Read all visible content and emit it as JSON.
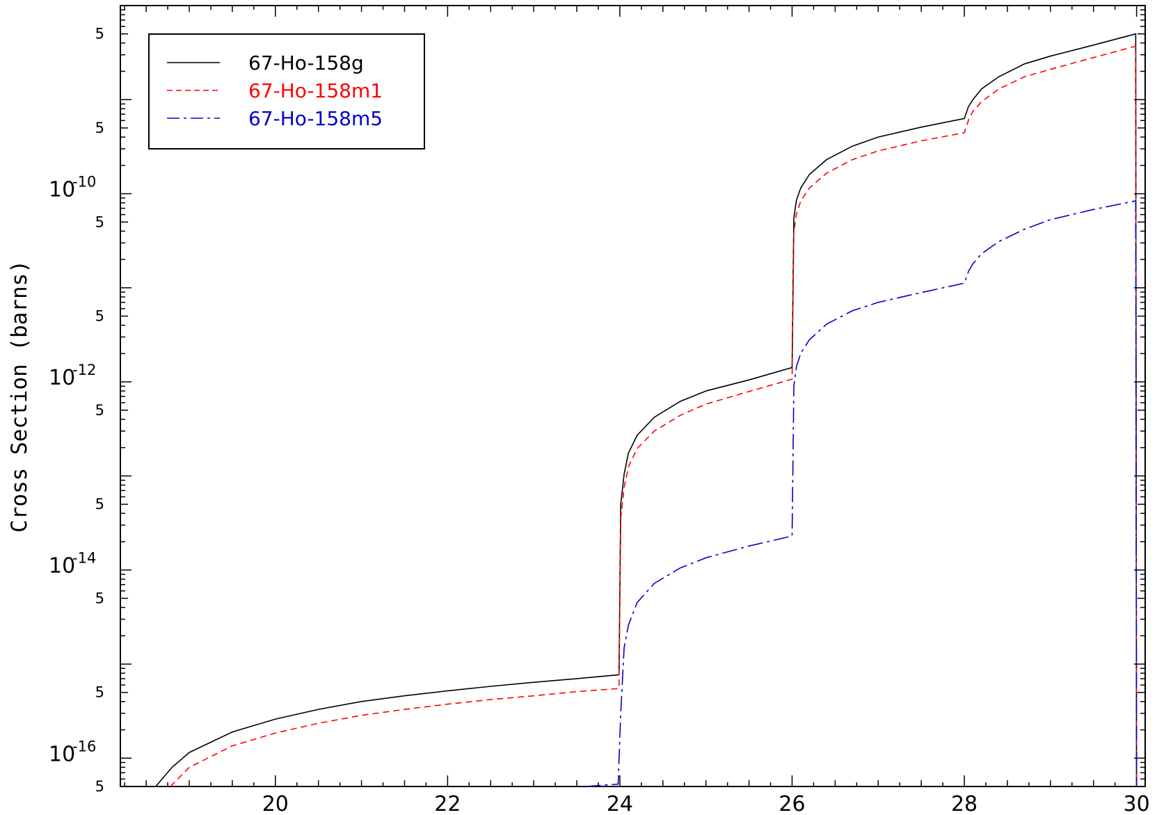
{
  "chart_data": {
    "type": "line",
    "title": "",
    "xlabel": "",
    "ylabel": "Cross Section (barns)",
    "yscale": "log",
    "xlim": [
      18.2,
      30.1
    ],
    "ylim": [
      5e-17,
      1e-08
    ],
    "grid": false,
    "legend_position": "top-left",
    "x_ticks": [
      "20",
      "22",
      "24",
      "26",
      "28",
      "30"
    ],
    "y_decade_labels": [
      {
        "value": 1e-16,
        "base": "10",
        "exponent": "-16"
      },
      {
        "value": 1e-14,
        "base": "10",
        "exponent": "-14"
      },
      {
        "value": 1e-12,
        "base": "10",
        "exponent": "-12"
      },
      {
        "value": 1e-10,
        "base": "10",
        "exponent": "-10"
      }
    ],
    "y_five_label": "5",
    "series": [
      {
        "name": "67-Ho-158g",
        "color": "#000000",
        "style": "solid",
        "points": [
          [
            18.61,
            5e-17
          ],
          [
            18.8,
            8e-17
          ],
          [
            19.0,
            1.15e-16
          ],
          [
            19.5,
            1.9e-16
          ],
          [
            20.0,
            2.6e-16
          ],
          [
            20.5,
            3.3e-16
          ],
          [
            21.0,
            4e-16
          ],
          [
            21.5,
            4.6e-16
          ],
          [
            22.0,
            5.2e-16
          ],
          [
            22.5,
            5.8e-16
          ],
          [
            23.0,
            6.4e-16
          ],
          [
            23.5,
            7e-16
          ],
          [
            23.99,
            7.7e-16
          ],
          [
            24.01,
            5e-14
          ],
          [
            24.05,
            1.05e-13
          ],
          [
            24.1,
            1.75e-13
          ],
          [
            24.2,
            2.7e-13
          ],
          [
            24.4,
            4.2e-13
          ],
          [
            24.7,
            6.2e-13
          ],
          [
            25.0,
            8e-13
          ],
          [
            25.5,
            1.05e-12
          ],
          [
            26.0,
            1.42e-12
          ],
          [
            26.02,
            5.5e-11
          ],
          [
            26.05,
            8.5e-11
          ],
          [
            26.1,
            1.15e-10
          ],
          [
            26.2,
            1.6e-10
          ],
          [
            26.4,
            2.3e-10
          ],
          [
            26.7,
            3.2e-10
          ],
          [
            27.0,
            4e-10
          ],
          [
            27.5,
            5.1e-10
          ],
          [
            28.0,
            6.3e-10
          ],
          [
            28.05,
            8.5e-10
          ],
          [
            28.1,
            1e-09
          ],
          [
            28.2,
            1.3e-09
          ],
          [
            28.4,
            1.75e-09
          ],
          [
            28.7,
            2.4e-09
          ],
          [
            29.0,
            2.9e-09
          ],
          [
            29.5,
            3.8e-09
          ],
          [
            29.99,
            5e-09
          ],
          [
            30.0,
            5e-17
          ]
        ]
      },
      {
        "name": "67-Ho-158m1",
        "color": "#ff0000",
        "style": "dashed",
        "points": [
          [
            18.78,
            5e-17
          ],
          [
            19.0,
            8e-17
          ],
          [
            19.5,
            1.35e-16
          ],
          [
            20.0,
            1.85e-16
          ],
          [
            20.5,
            2.35e-16
          ],
          [
            21.0,
            2.85e-16
          ],
          [
            21.5,
            3.3e-16
          ],
          [
            22.0,
            3.75e-16
          ],
          [
            22.5,
            4.2e-16
          ],
          [
            23.0,
            4.6e-16
          ],
          [
            23.5,
            5.1e-16
          ],
          [
            23.99,
            5.5e-16
          ],
          [
            24.01,
            3.5e-14
          ],
          [
            24.05,
            7.5e-14
          ],
          [
            24.1,
            1.25e-13
          ],
          [
            24.2,
            1.95e-13
          ],
          [
            24.4,
            3e-13
          ],
          [
            24.7,
            4.4e-13
          ],
          [
            25.0,
            5.8e-13
          ],
          [
            25.5,
            7.9e-13
          ],
          [
            26.0,
            1.07e-12
          ],
          [
            26.02,
            3.9e-11
          ],
          [
            26.05,
            6.1e-11
          ],
          [
            26.1,
            8.3e-11
          ],
          [
            26.2,
            1.15e-10
          ],
          [
            26.4,
            1.65e-10
          ],
          [
            26.7,
            2.3e-10
          ],
          [
            27.0,
            2.85e-10
          ],
          [
            27.5,
            3.65e-10
          ],
          [
            28.0,
            4.45e-10
          ],
          [
            28.05,
            6.1e-10
          ],
          [
            28.1,
            7.5e-10
          ],
          [
            28.2,
            9.5e-10
          ],
          [
            28.4,
            1.3e-09
          ],
          [
            28.7,
            1.75e-09
          ],
          [
            29.0,
            2.1e-09
          ],
          [
            29.5,
            2.8e-09
          ],
          [
            29.99,
            3.7e-09
          ],
          [
            30.0,
            5e-17
          ]
        ]
      },
      {
        "name": "67-Ho-158m5",
        "color": "#0000cc",
        "style": "dashdot",
        "points": [
          [
            23.6,
            5e-17
          ],
          [
            23.98,
            5.3e-17
          ],
          [
            24.01,
            3e-16
          ],
          [
            24.05,
            1.5e-15
          ],
          [
            24.1,
            2.6e-15
          ],
          [
            24.2,
            4.5e-15
          ],
          [
            24.4,
            7.2e-15
          ],
          [
            24.7,
            1.05e-14
          ],
          [
            25.0,
            1.35e-14
          ],
          [
            25.5,
            1.8e-14
          ],
          [
            26.0,
            2.3e-14
          ],
          [
            26.02,
            9e-13
          ],
          [
            26.05,
            1.45e-12
          ],
          [
            26.1,
            2e-12
          ],
          [
            26.2,
            2.8e-12
          ],
          [
            26.4,
            4.1e-12
          ],
          [
            26.7,
            5.7e-12
          ],
          [
            27.0,
            7e-12
          ],
          [
            27.5,
            8.9e-12
          ],
          [
            28.0,
            1.12e-11
          ],
          [
            28.05,
            1.5e-11
          ],
          [
            28.1,
            1.8e-11
          ],
          [
            28.2,
            2.3e-11
          ],
          [
            28.4,
            3.1e-11
          ],
          [
            28.7,
            4.2e-11
          ],
          [
            29.0,
            5.3e-11
          ],
          [
            29.5,
            6.8e-11
          ],
          [
            29.99,
            8.4e-11
          ],
          [
            30.0,
            5e-17
          ]
        ]
      }
    ]
  }
}
